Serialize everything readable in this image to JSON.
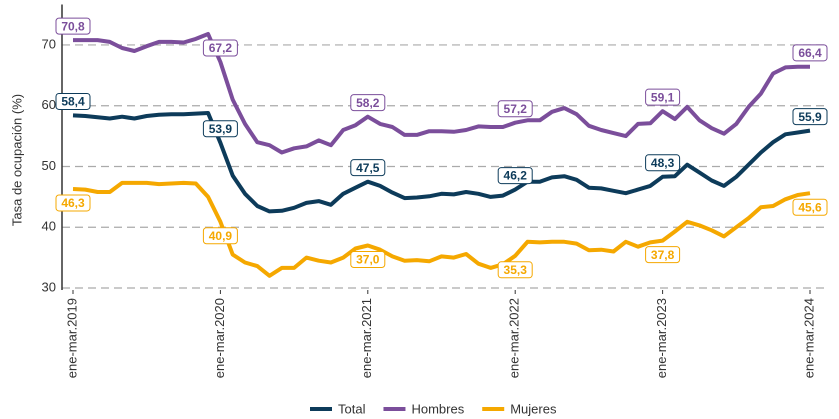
{
  "chart_data": {
    "type": "line",
    "y_label": "Tasa de ocupación (%)",
    "categories": [
      "ene-mar.2019",
      null,
      null,
      null,
      null,
      null,
      null,
      null,
      null,
      null,
      null,
      null,
      "ene-mar.2020",
      null,
      null,
      null,
      null,
      null,
      null,
      null,
      null,
      null,
      null,
      null,
      "ene-mar.2021",
      null,
      null,
      null,
      null,
      null,
      null,
      null,
      null,
      null,
      null,
      null,
      "ene-mar.2022",
      null,
      null,
      null,
      null,
      null,
      null,
      null,
      null,
      null,
      null,
      null,
      "ene-mar.2023",
      null,
      null,
      null,
      null,
      null,
      null,
      null,
      null,
      null,
      null,
      null,
      "ene-mar.2024"
    ],
    "series": [
      {
        "name": "Total",
        "color": "#0d3b5a",
        "values": [
          58.4,
          58.3,
          58.1,
          57.9,
          58.2,
          57.9,
          58.3,
          58.5,
          58.6,
          58.6,
          58.7,
          58.8,
          53.9,
          48.5,
          45.5,
          43.5,
          42.6,
          42.7,
          43.2,
          44,
          44.3,
          43.7,
          45.5,
          46.5,
          47.5,
          46.8,
          45.7,
          44.8,
          44.9,
          45.1,
          45.5,
          45.4,
          45.8,
          45.5,
          45,
          45.2,
          46.2,
          47.5,
          47.5,
          48.2,
          48.4,
          47.8,
          46.5,
          46.4,
          46,
          45.6,
          46.2,
          46.8,
          48.3,
          48.4,
          50.3,
          49,
          47.7,
          46.8,
          48.3,
          50.3,
          52.3,
          54,
          55.3,
          55.6,
          55.9
        ],
        "value_labels": [
          "58,4",
          null,
          null,
          null,
          null,
          null,
          null,
          null,
          null,
          null,
          null,
          null,
          "53,9",
          null,
          null,
          null,
          null,
          null,
          null,
          null,
          null,
          null,
          null,
          null,
          "47,5",
          null,
          null,
          null,
          null,
          null,
          null,
          null,
          null,
          null,
          null,
          null,
          "46,2",
          null,
          null,
          null,
          null,
          null,
          null,
          null,
          null,
          null,
          null,
          null,
          "48,3",
          null,
          null,
          null,
          null,
          null,
          null,
          null,
          null,
          null,
          null,
          null,
          "55,9"
        ]
      },
      {
        "name": "Hombres",
        "color": "#7b4e9b",
        "values": [
          70.8,
          70.8,
          70.8,
          70.5,
          69.5,
          69,
          69.8,
          70.5,
          70.5,
          70.4,
          71,
          71.8,
          67.2,
          61,
          57,
          54,
          53.5,
          52.3,
          53,
          53.3,
          54.3,
          53.5,
          56,
          56.8,
          58.2,
          57,
          56.5,
          55.2,
          55.2,
          55.8,
          55.8,
          55.7,
          56,
          56.6,
          56.5,
          56.5,
          57.2,
          57.6,
          57.6,
          59,
          59.6,
          58.6,
          56.7,
          56,
          55.5,
          55,
          57,
          57.1,
          59.1,
          57.8,
          59.8,
          57.6,
          56.3,
          55.4,
          57,
          59.8,
          62,
          65.3,
          66.3,
          66.4,
          66.4
        ],
        "value_labels": [
          "70,8",
          null,
          null,
          null,
          null,
          null,
          null,
          null,
          null,
          null,
          null,
          null,
          "67,2",
          null,
          null,
          null,
          null,
          null,
          null,
          null,
          null,
          null,
          null,
          null,
          "58,2",
          null,
          null,
          null,
          null,
          null,
          null,
          null,
          null,
          null,
          null,
          null,
          "57,2",
          null,
          null,
          null,
          null,
          null,
          null,
          null,
          null,
          null,
          null,
          null,
          "59,1",
          null,
          null,
          null,
          null,
          null,
          null,
          null,
          null,
          null,
          null,
          null,
          "66,4"
        ]
      },
      {
        "name": "Mujeres",
        "color": "#f5a800",
        "values": [
          46.3,
          46.2,
          45.8,
          45.8,
          47.3,
          47.3,
          47.3,
          47.1,
          47.2,
          47.3,
          47.2,
          45,
          40.9,
          35.5,
          34.2,
          33.6,
          32,
          33.3,
          33.3,
          35,
          34.5,
          34.2,
          35,
          36.5,
          37.0,
          36.3,
          35.2,
          34.5,
          34.6,
          34.4,
          35.2,
          35,
          35.6,
          34,
          33.3,
          33.9,
          35.3,
          37.6,
          37.5,
          37.6,
          37.6,
          37.3,
          36.2,
          36.3,
          36,
          37.6,
          36.8,
          37.5,
          37.8,
          39.3,
          40.9,
          40.3,
          39.5,
          38.5,
          40,
          41.5,
          43.3,
          43.5,
          44.6,
          45.3,
          45.6
        ],
        "value_labels": [
          "46,3",
          null,
          null,
          null,
          null,
          null,
          null,
          null,
          null,
          null,
          null,
          null,
          "40,9",
          null,
          null,
          null,
          null,
          null,
          null,
          null,
          null,
          null,
          null,
          null,
          "37,0",
          null,
          null,
          null,
          null,
          null,
          null,
          null,
          null,
          null,
          null,
          null,
          "35,3",
          null,
          null,
          null,
          null,
          null,
          null,
          null,
          null,
          null,
          null,
          null,
          "37,8",
          null,
          null,
          null,
          null,
          null,
          null,
          null,
          null,
          null,
          null,
          null,
          "45,6"
        ]
      }
    ],
    "ylim": [
      30,
      76
    ],
    "yticks": [
      30,
      40,
      50,
      60,
      70
    ],
    "grid": true,
    "legend": "bottom"
  }
}
